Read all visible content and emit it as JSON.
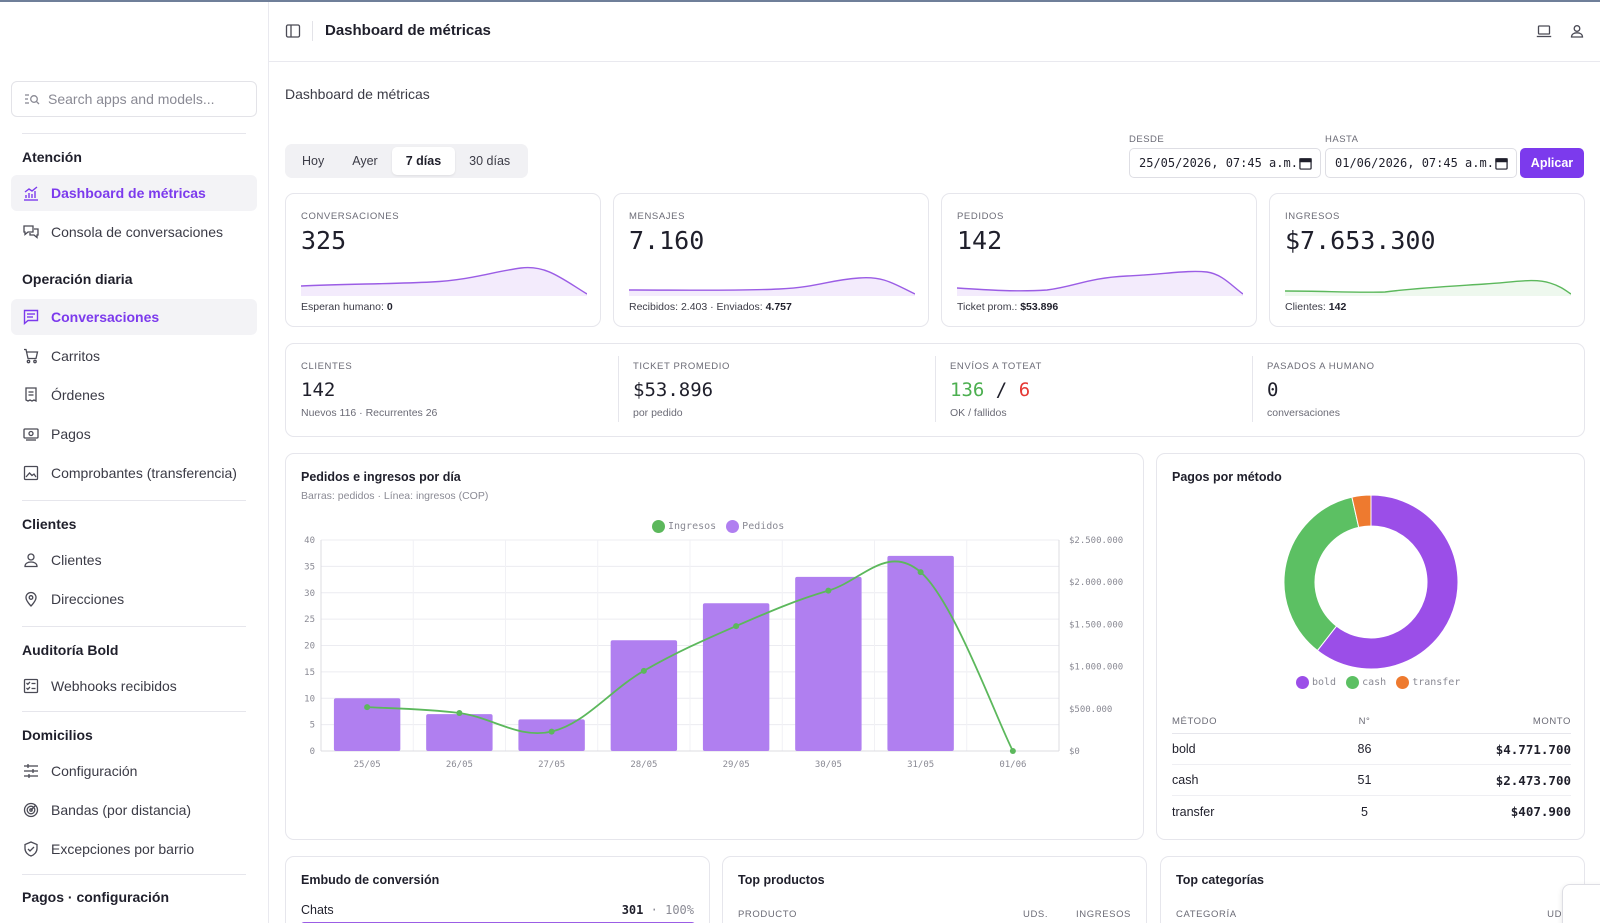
{
  "header": {
    "title": "Dashboard de métricas"
  },
  "sidebar": {
    "search_placeholder": "Search apps and models...",
    "groups": [
      {
        "title": "Atención",
        "items": [
          {
            "label": "Dashboard de métricas",
            "icon": "chart-icon",
            "active": true
          },
          {
            "label": "Consola de conversaciones",
            "icon": "chat-bubbles-icon"
          }
        ]
      },
      {
        "title": "Operación diaria",
        "items": [
          {
            "label": "Conversaciones",
            "icon": "message-icon",
            "active": true
          },
          {
            "label": "Carritos",
            "icon": "cart-icon"
          },
          {
            "label": "Órdenes",
            "icon": "receipt-icon"
          },
          {
            "label": "Pagos",
            "icon": "cash-icon"
          },
          {
            "label": "Comprobantes (transferencia)",
            "icon": "image-icon"
          }
        ]
      },
      {
        "title": "Clientes",
        "items": [
          {
            "label": "Clientes",
            "icon": "user-icon"
          },
          {
            "label": "Direcciones",
            "icon": "map-pin-icon"
          }
        ]
      },
      {
        "title": "Auditoría Bold",
        "items": [
          {
            "label": "Webhooks recibidos",
            "icon": "checklist-icon"
          }
        ]
      },
      {
        "title": "Domicilios",
        "items": [
          {
            "label": "Configuración",
            "icon": "sliders-icon"
          },
          {
            "label": "Bandas (por distancia)",
            "icon": "radar-icon"
          },
          {
            "label": "Excepciones por barrio",
            "icon": "shield-check-icon"
          }
        ]
      },
      {
        "title": "Pagos · configuración",
        "items": []
      }
    ]
  },
  "main": {
    "breadcrumb": "Dashboard de métricas",
    "ranges": [
      "Hoy",
      "Ayer",
      "7 días",
      "30 días"
    ],
    "active_range": "7 días",
    "date_from_label": "DESDE",
    "date_from": "25/05/2026, 07:45 a.m.",
    "date_to_label": "HASTA",
    "date_to": "01/06/2026, 07:45 a.m.",
    "apply_label": "Aplicar",
    "kpis": [
      {
        "label": "CONVERSACIONES",
        "value": "325",
        "foot_text": "Esperan humano: ",
        "foot_bold": "0",
        "color": "#9b5de5"
      },
      {
        "label": "MENSAJES",
        "value": "7.160",
        "foot_text": "Recibidos: 2.403 · Enviados: ",
        "foot_bold": "4.757",
        "color": "#9b5de5"
      },
      {
        "label": "PEDIDOS",
        "value": "142",
        "foot_text": "Ticket prom.: ",
        "foot_bold": "$53.896",
        "color": "#9b5de5"
      },
      {
        "label": "INGRESOS",
        "value": "$7.653.300",
        "foot_text": "Clientes: ",
        "foot_bold": "142",
        "color": "#5cb85c"
      }
    ],
    "stats": [
      {
        "label": "CLIENTES",
        "value": "142",
        "sub": "Nuevos 116 · Recurrentes 26"
      },
      {
        "label": "TICKET PROMEDIO",
        "value": "$53.896",
        "sub": "por pedido"
      },
      {
        "label": "ENVÍOS A TOTEAT",
        "ok": "136",
        "slash": "/",
        "fail": "6",
        "sub": "OK / fallidos"
      },
      {
        "label": "PASADOS A HUMANO",
        "value": "0",
        "sub": "conversaciones"
      }
    ],
    "orders_chart": {
      "title": "Pedidos e ingresos por día",
      "subtitle": "Barras: pedidos · Línea: ingresos (COP)",
      "legend": [
        "Ingresos",
        "Pedidos"
      ]
    },
    "payments": {
      "title": "Pagos por método",
      "legend": [
        "bold",
        "cash",
        "transfer"
      ],
      "head": {
        "method": "MÉTODO",
        "count": "N°",
        "amount": "MONTO"
      },
      "rows": [
        {
          "method": "bold",
          "count": "86",
          "amount": "$4.771.700"
        },
        {
          "method": "cash",
          "count": "51",
          "amount": "$2.473.700"
        },
        {
          "method": "transfer",
          "count": "5",
          "amount": "$407.900"
        }
      ]
    },
    "funnel": {
      "title": "Embudo de conversión",
      "row_label": "Chats",
      "row_value": "301",
      "row_sep": "·",
      "row_pct": "100%"
    },
    "top_products": {
      "title": "Top productos",
      "col_product": "PRODUCTO",
      "col_units": "UDS.",
      "col_revenue": "INGRESOS"
    },
    "top_categories": {
      "title": "Top categorías",
      "col_category": "CATEGORÍA",
      "col_units": "UDS"
    }
  },
  "colors": {
    "accent": "#7c3aed",
    "bar": "#b07ff0",
    "line": "#5cb85c",
    "bold": "#9b4ee8",
    "cash": "#5cc063",
    "transfer": "#ee7a2f",
    "fail": "#e53935",
    "ok": "#4caf50"
  },
  "chart_data": [
    {
      "type": "bar",
      "title": "Pedidos e ingresos por día",
      "categories": [
        "25/05",
        "26/05",
        "27/05",
        "28/05",
        "29/05",
        "30/05",
        "31/05",
        "01/06"
      ],
      "series": [
        {
          "name": "Pedidos",
          "type": "bar",
          "axis": "left",
          "values": [
            10,
            7,
            6,
            21,
            28,
            33,
            37,
            0
          ]
        },
        {
          "name": "Ingresos",
          "type": "line",
          "axis": "right",
          "values": [
            520000,
            450000,
            230000,
            950000,
            1480000,
            1900000,
            2120000,
            0
          ]
        }
      ],
      "ylim": [
        0,
        40
      ],
      "y_ticks": [
        "0",
        "5",
        "10",
        "15",
        "20",
        "25",
        "30",
        "35",
        "40"
      ],
      "y2lim": [
        0,
        2500000
      ],
      "y2_ticks": [
        "$0",
        "$500.000",
        "$1.000.000",
        "$1.500.000",
        "$2.000.000",
        "$2.500.000"
      ],
      "legend_position": "top"
    },
    {
      "type": "pie",
      "title": "Pagos por método",
      "categories": [
        "bold",
        "cash",
        "transfer"
      ],
      "values": [
        86,
        51,
        5
      ],
      "donut": true,
      "legend_position": "bottom"
    }
  ]
}
